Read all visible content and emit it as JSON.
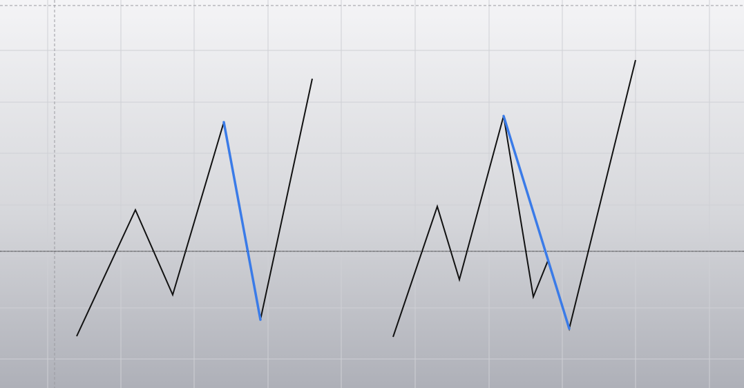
{
  "canvas": {
    "background_top": "#f4f4f6",
    "background_bottom": "#aeb0b8",
    "grid_color": "#cfd0d5",
    "crosshair_color": "#9a9aa0",
    "horizontal_line_color": "#111111"
  },
  "patterns": [
    {
      "name": "pattern-left",
      "path_color": "#111111",
      "highlight_color": "#3a7be8",
      "highlight_segment": [
        3,
        4
      ]
    },
    {
      "name": "pattern-right",
      "path_color": "#111111",
      "highlight_color": "#3a7be8",
      "highlight_segment": [
        3,
        6
      ]
    }
  ]
}
